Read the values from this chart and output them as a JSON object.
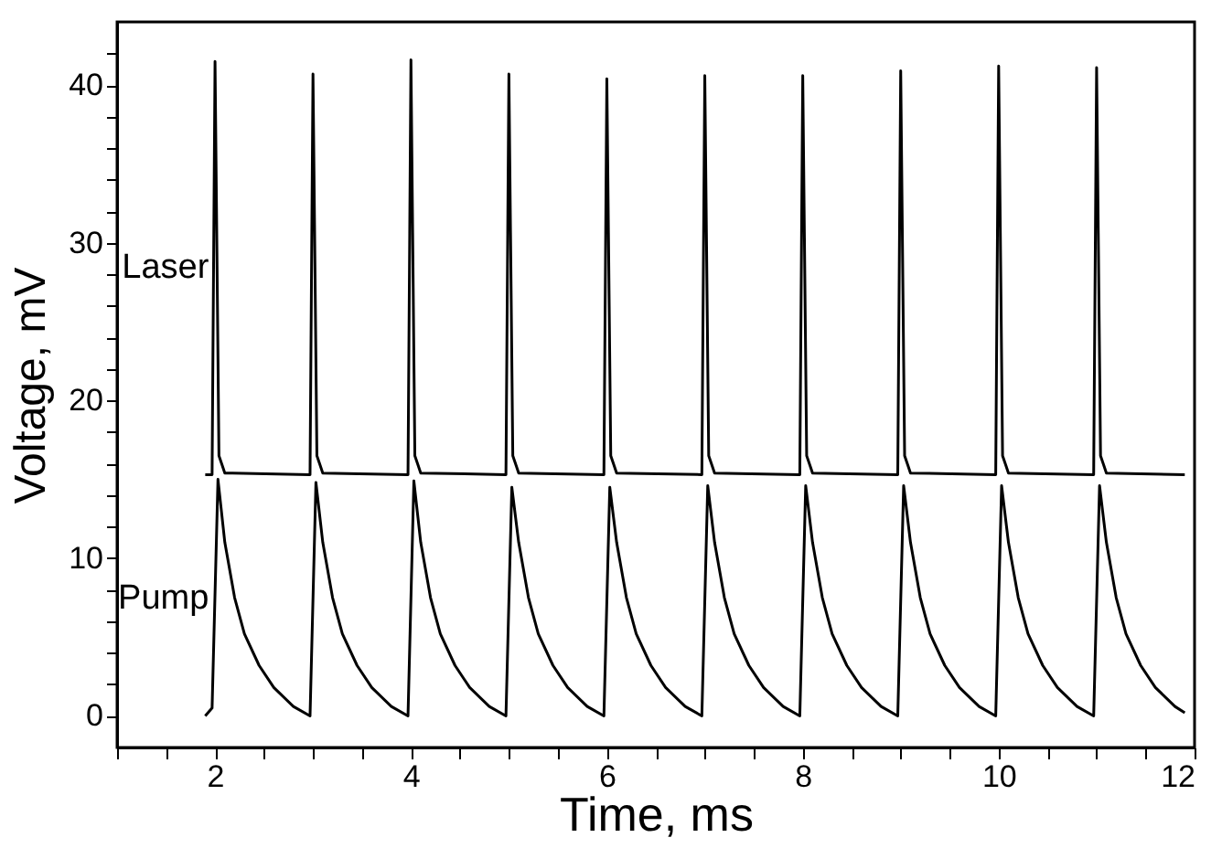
{
  "chart_data": {
    "type": "line",
    "xlabel": "Time,  ms",
    "ylabel": "Voltage,  mV",
    "xlim": [
      1,
      12
    ],
    "ylim": [
      -2,
      44
    ],
    "xticks": [
      {
        "value": 1,
        "label": null
      },
      {
        "value": 1.5,
        "label": null
      },
      2,
      {
        "value": 2.5,
        "label": null
      },
      {
        "value": 3,
        "label": null
      },
      {
        "value": 3.5,
        "label": null
      },
      4,
      {
        "value": 4.5,
        "label": null
      },
      {
        "value": 5,
        "label": null
      },
      {
        "value": 5.5,
        "label": null
      },
      6,
      {
        "value": 6.5,
        "label": null
      },
      {
        "value": 7,
        "label": null
      },
      {
        "value": 7.5,
        "label": null
      },
      8,
      {
        "value": 8.5,
        "label": null
      },
      {
        "value": 9,
        "label": null
      },
      {
        "value": 9.5,
        "label": null
      },
      10,
      {
        "value": 10.5,
        "label": null
      },
      {
        "value": 11,
        "label": null
      },
      {
        "value": 11.5,
        "label": null
      },
      12
    ],
    "yticks": [
      0,
      {
        "value": 2,
        "label": null
      },
      {
        "value": 4,
        "label": null
      },
      {
        "value": 6,
        "label": null
      },
      {
        "value": 8,
        "label": null
      },
      10,
      {
        "value": 12,
        "label": null
      },
      {
        "value": 14,
        "label": null
      },
      {
        "value": 16,
        "label": null
      },
      {
        "value": 18,
        "label": null
      },
      20,
      {
        "value": 22,
        "label": null
      },
      {
        "value": 24,
        "label": null
      },
      {
        "value": 26,
        "label": null
      },
      {
        "value": 28,
        "label": null
      },
      30,
      {
        "value": 32,
        "label": null
      },
      {
        "value": 34,
        "label": null
      },
      {
        "value": 36,
        "label": null
      },
      {
        "value": 38,
        "label": null
      },
      40,
      {
        "value": 42,
        "label": null
      }
    ],
    "grid": false,
    "legend": false,
    "marker": "none",
    "line_style": "solid",
    "series": [
      {
        "name": "Laser",
        "color": "#000000",
        "x": [
          1.9,
          1.97,
          2.0,
          2.04,
          2.1,
          2.97,
          3.0,
          3.04,
          3.1,
          3.97,
          4.0,
          4.04,
          4.1,
          4.97,
          5.0,
          5.04,
          5.1,
          5.97,
          6.0,
          6.04,
          6.1,
          6.97,
          7.0,
          7.04,
          7.1,
          7.97,
          8.0,
          8.04,
          8.1,
          8.97,
          9.0,
          9.04,
          9.1,
          9.97,
          10.0,
          10.04,
          10.1,
          10.97,
          11.0,
          11.04,
          11.1,
          11.9
        ],
        "values": [
          15.3,
          15.3,
          41.5,
          16.5,
          15.4,
          15.3,
          40.7,
          16.5,
          15.4,
          15.3,
          41.6,
          16.5,
          15.4,
          15.3,
          40.7,
          16.5,
          15.4,
          15.3,
          40.4,
          16.5,
          15.4,
          15.3,
          40.6,
          16.5,
          15.4,
          15.3,
          40.6,
          16.5,
          15.4,
          15.3,
          40.9,
          16.5,
          15.4,
          15.3,
          41.2,
          16.5,
          15.4,
          15.3,
          41.1,
          16.5,
          15.4,
          15.3
        ]
      },
      {
        "name": "Pump",
        "color": "#000000",
        "x": [
          1.9,
          1.97,
          2.03,
          2.1,
          2.2,
          2.3,
          2.45,
          2.6,
          2.8,
          2.97,
          3.03,
          3.1,
          3.2,
          3.3,
          3.45,
          3.6,
          3.8,
          3.97,
          4.03,
          4.1,
          4.2,
          4.3,
          4.45,
          4.6,
          4.8,
          4.97,
          5.03,
          5.1,
          5.2,
          5.3,
          5.45,
          5.6,
          5.8,
          5.97,
          6.03,
          6.1,
          6.2,
          6.3,
          6.45,
          6.6,
          6.8,
          6.97,
          7.03,
          7.1,
          7.2,
          7.3,
          7.45,
          7.6,
          7.8,
          7.97,
          8.03,
          8.1,
          8.2,
          8.3,
          8.45,
          8.6,
          8.8,
          8.97,
          9.03,
          9.1,
          9.2,
          9.3,
          9.45,
          9.6,
          9.8,
          9.97,
          10.03,
          10.1,
          10.2,
          10.3,
          10.45,
          10.6,
          10.8,
          10.97,
          11.03,
          11.1,
          11.2,
          11.3,
          11.45,
          11.6,
          11.8,
          11.9
        ],
        "values": [
          0,
          0.5,
          15,
          11,
          7.5,
          5.2,
          3.2,
          1.8,
          0.6,
          0,
          14.8,
          11,
          7.5,
          5.2,
          3.2,
          1.8,
          0.6,
          0,
          14.9,
          11,
          7.5,
          5.2,
          3.2,
          1.8,
          0.6,
          0,
          14.5,
          11,
          7.5,
          5.2,
          3.2,
          1.8,
          0.6,
          0,
          14.5,
          11,
          7.5,
          5.2,
          3.2,
          1.8,
          0.6,
          0,
          14.6,
          11,
          7.5,
          5.2,
          3.2,
          1.8,
          0.6,
          0,
          14.6,
          11,
          7.5,
          5.2,
          3.2,
          1.8,
          0.6,
          0,
          14.6,
          11,
          7.5,
          5.2,
          3.2,
          1.8,
          0.6,
          0,
          14.6,
          11,
          7.5,
          5.2,
          3.2,
          1.8,
          0.6,
          0,
          14.6,
          11,
          7.5,
          5.2,
          3.2,
          1.8,
          0.6,
          0.2
        ]
      }
    ]
  }
}
